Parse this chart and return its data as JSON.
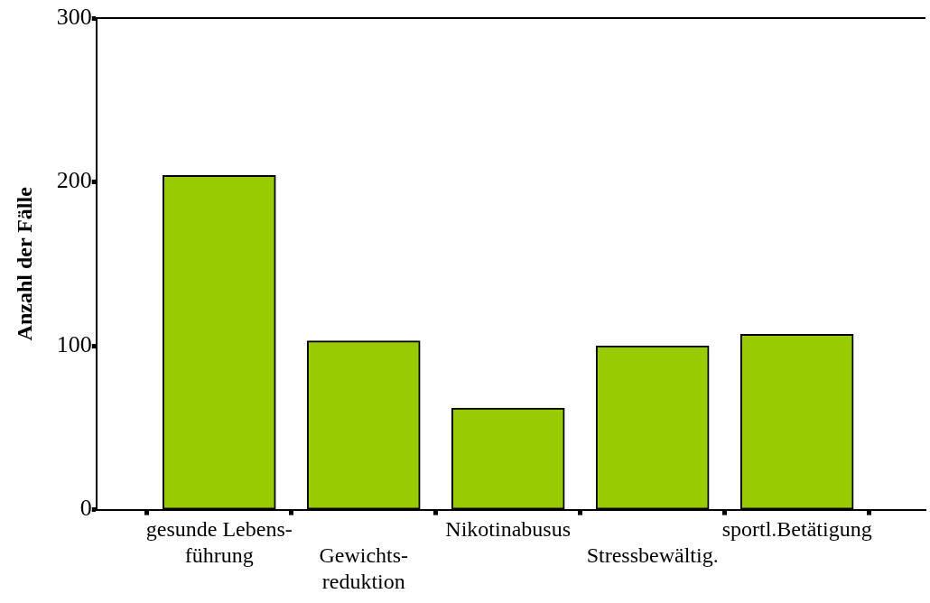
{
  "chart_data": {
    "type": "bar",
    "ylabel": "Anzahl der Fälle",
    "categories": [
      "gesunde Lebens-\nführung",
      "Gewichts-\nreduktion",
      "Nikotinabusus",
      "Stressbewältig.",
      "sportl.Betätigung"
    ],
    "values": [
      204,
      103,
      62,
      100,
      107
    ],
    "color": "#99cc00",
    "ylim": [
      0,
      300
    ],
    "yticks": [
      0,
      100,
      200,
      300
    ],
    "grid": false,
    "legend": false
  }
}
